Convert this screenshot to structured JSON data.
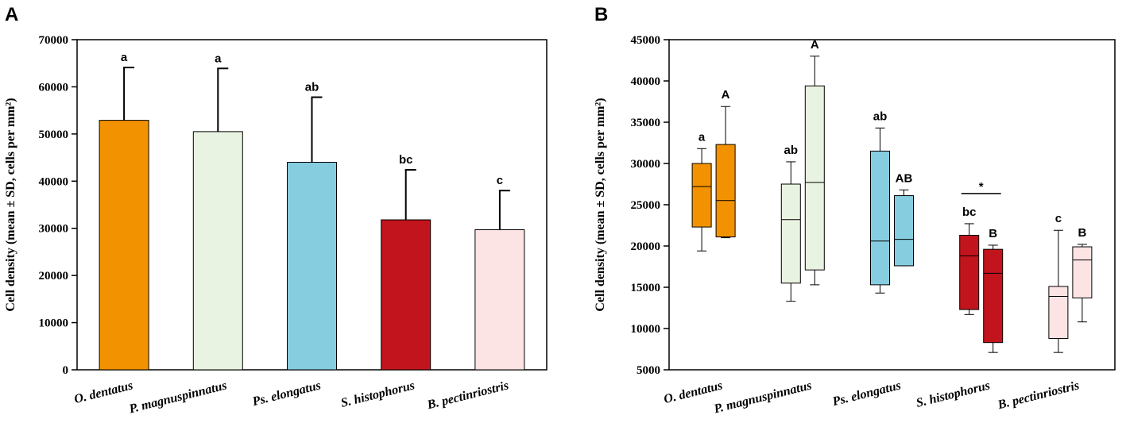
{
  "chart_data": [
    {
      "panel": "A",
      "type": "bar",
      "title": "",
      "xlabel": "",
      "ylabel": "Cell density (mean ± SD, cells per mm²)",
      "ylim": [
        0,
        70000
      ],
      "yticks": [
        0,
        10000,
        20000,
        30000,
        40000,
        50000,
        60000,
        70000
      ],
      "categories": [
        "O. dentatus",
        "P. magnuspinnatus",
        "Ps. elongatus",
        "S. histophorus",
        "B. pectinriostris"
      ],
      "values": [
        52900,
        50500,
        44000,
        31800,
        29700
      ],
      "sd": [
        11200,
        13400,
        13800,
        10600,
        8300
      ],
      "labels": [
        "a",
        "a",
        "ab",
        "bc",
        "c"
      ],
      "colors": [
        "#f39200",
        "#e9f3e1",
        "#86cde0",
        "#c2141c",
        "#fbe4e3"
      ],
      "grid": false,
      "legend": "none"
    },
    {
      "panel": "B",
      "type": "box",
      "title": "",
      "xlabel": "",
      "ylabel": "Cell density (mean ± SD, cells per mm²)",
      "ylim": [
        5000,
        45000
      ],
      "yticks": [
        5000,
        10000,
        15000,
        20000,
        25000,
        30000,
        35000,
        40000,
        45000
      ],
      "categories": [
        "O. dentatus",
        "P. magnuspinnatus",
        "Ps. elongatus",
        "S. histophorus",
        "B. pectinriostris"
      ],
      "colors": [
        "#f39200",
        "#e9f3e1",
        "#86cde0",
        "#c2141c",
        "#fbe4e3"
      ],
      "series": [
        {
          "name": "",
          "boxes": [
            {
              "min": 19400,
              "q1": 22300,
              "median": 27200,
              "q3": 30000,
              "max": 31800,
              "label": "a"
            },
            {
              "min": 13300,
              "q1": 15500,
              "median": 23200,
              "q3": 27500,
              "max": 30200,
              "label": "ab"
            },
            {
              "min": 14300,
              "q1": 15300,
              "median": 20600,
              "q3": 31500,
              "max": 34300,
              "label": "ab"
            },
            {
              "min": 11700,
              "q1": 12300,
              "median": 18800,
              "q3": 21300,
              "max": 22700,
              "label": "bc"
            },
            {
              "min": 7100,
              "q1": 8800,
              "median": 13900,
              "q3": 15100,
              "max": 21900,
              "label": "c"
            }
          ]
        },
        {
          "name": "",
          "boxes": [
            {
              "min": 21000,
              "q1": 21100,
              "median": 25500,
              "q3": 32300,
              "max": 36900,
              "label": "A"
            },
            {
              "min": 15300,
              "q1": 17100,
              "median": 27700,
              "q3": 39400,
              "max": 43000,
              "label": "A"
            },
            {
              "min": 17600,
              "q1": 17600,
              "median": 20800,
              "q3": 26100,
              "max": 26800,
              "label": "AB"
            },
            {
              "min": 7100,
              "q1": 8300,
              "median": 16700,
              "q3": 19600,
              "max": 20100,
              "label": "B"
            },
            {
              "min": 10800,
              "q1": 13700,
              "median": 18300,
              "q3": 19900,
              "max": 20200,
              "label": "B"
            }
          ]
        }
      ],
      "annotation": {
        "text": "*",
        "category_index": 3
      },
      "grid": false,
      "legend": "none"
    }
  ]
}
